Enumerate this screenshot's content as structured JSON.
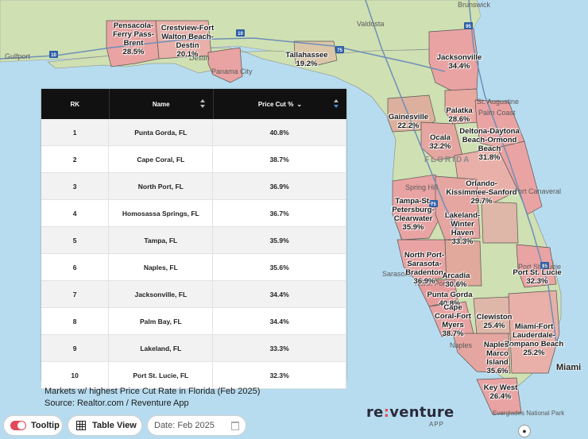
{
  "map_labels": [
    {
      "name": "Pensacola-Ferry Pass-Brent",
      "value": "28.5%"
    },
    {
      "name": "Crestview-Fort Walton Beach-Destin",
      "value": "20.1%"
    },
    {
      "name": "Tallahassee",
      "value": "19.2%"
    },
    {
      "name": "Jacksonville",
      "value": "34.4%"
    },
    {
      "name": "Palatka",
      "value": "28.6%"
    },
    {
      "name": "Gainesville",
      "value": "22.2%"
    },
    {
      "name": "Deltona-Daytona Beach-Ormond Beach",
      "value": "31.8%"
    },
    {
      "name": "Ocala",
      "value": "32.2%"
    },
    {
      "name": "Orlando-Kissimmee-Sanford",
      "value": "29.7%"
    },
    {
      "name": "Tampa-St. Petersburg-Clearwater",
      "value": "35.9%"
    },
    {
      "name": "Lakeland-Winter Haven",
      "value": "33.3%"
    },
    {
      "name": "North Port-Sarasota-Bradenton",
      "value": "36.9%"
    },
    {
      "name": "Arcadia",
      "value": "30.6%"
    },
    {
      "name": "Port St. Lucie",
      "value": "32.3%"
    },
    {
      "name": "Punta Gorda",
      "value": "40.8%"
    },
    {
      "name": "Cape Coral-Fort Myers",
      "value": "38.7%"
    },
    {
      "name": "Clewiston",
      "value": "25.4%"
    },
    {
      "name": "Miami-Fort Lauderdale-Pompano Beach",
      "value": "25.2%"
    },
    {
      "name": "Naples-Marco Island",
      "value": "35.6%"
    },
    {
      "name": "Key West",
      "value": "26.4%"
    }
  ],
  "place_names": [
    "Brunswick",
    "Valdosta",
    "Gulfport",
    "Destin",
    "Panama City",
    "St. Augustine",
    "Palm Coast",
    "Spring Hill",
    "Port Canaveral",
    "Sarasota",
    "North Port",
    "Port St. Lucie",
    "Naples",
    "Everglades National Park",
    "Miami",
    "FLORIDA"
  ],
  "miami_label": "Miami",
  "table": {
    "headers": {
      "rank": "RK",
      "name": "Name",
      "price_cut": "Price Cut %"
    },
    "rows": [
      {
        "rank": "1",
        "name": "Punta Gorda, FL",
        "value": "40.8%"
      },
      {
        "rank": "2",
        "name": "Cape Coral, FL",
        "value": "38.7%"
      },
      {
        "rank": "3",
        "name": "North Port, FL",
        "value": "36.9%"
      },
      {
        "rank": "4",
        "name": "Homosassa Springs, FL",
        "value": "36.7%"
      },
      {
        "rank": "5",
        "name": "Tampa, FL",
        "value": "35.9%"
      },
      {
        "rank": "6",
        "name": "Naples, FL",
        "value": "35.6%"
      },
      {
        "rank": "7",
        "name": "Jacksonville, FL",
        "value": "34.4%"
      },
      {
        "rank": "8",
        "name": "Palm Bay, FL",
        "value": "34.4%"
      },
      {
        "rank": "9",
        "name": "Lakeland, FL",
        "value": "33.3%"
      },
      {
        "rank": "10",
        "name": "Port St. Lucie, FL",
        "value": "32.3%"
      }
    ]
  },
  "caption": {
    "line1": "Markets w/ highest Price Cut Rate in Florida (Feb 2025)",
    "line2": "Source: Realtor.com / Reventure App"
  },
  "logo": {
    "left": "re",
    "colon": ":",
    "right": "venture",
    "sub": "APP"
  },
  "controls": {
    "tooltip_label": "Tooltip",
    "table_view_label": "Table View",
    "date_value": "Date: Feb 2025"
  },
  "highways": [
    "10",
    "10",
    "75",
    "95",
    "75",
    "95"
  ],
  "colors": {
    "water": "#b7dcef",
    "land": "#cfe0b2",
    "metro_pink": "#e9a3a3",
    "metro_dark": "#d98a8a",
    "toggle_accent": "#e04a5a",
    "logo_accent": "#e24a56"
  }
}
